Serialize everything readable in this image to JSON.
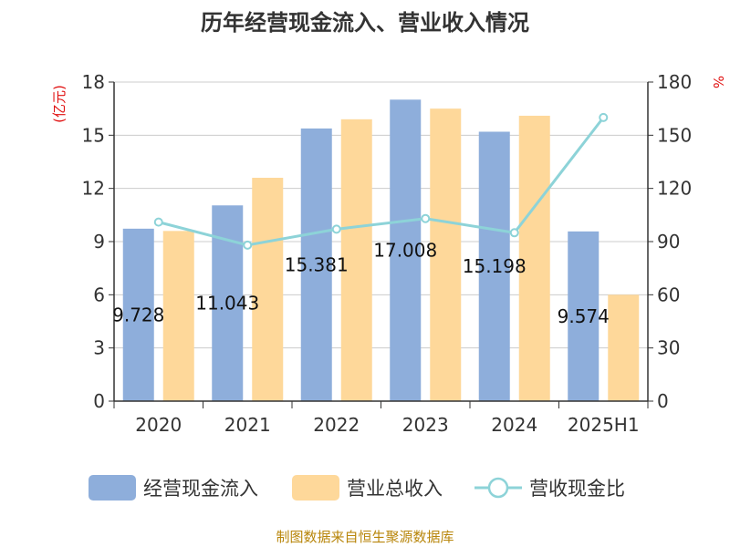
{
  "chart_data": {
    "type": "bar",
    "title": "历年经营现金流入、营业收入情况",
    "categories": [
      "2020",
      "2021",
      "2022",
      "2023",
      "2024",
      "2025H1"
    ],
    "left_axis": {
      "unit": "(亿元)",
      "ylim": [
        0,
        18
      ],
      "ticks": [
        "0",
        "3",
        "6",
        "9",
        "12",
        "15",
        "18"
      ]
    },
    "right_axis": {
      "unit": "%",
      "ylim": [
        0,
        180
      ],
      "ticks": [
        "0",
        "30",
        "60",
        "90",
        "120",
        "150",
        "180"
      ]
    },
    "series": [
      {
        "name": "经营现金流入",
        "type": "bar",
        "axis": "left",
        "color": "#8eaedb",
        "values": [
          9.728,
          11.043,
          15.381,
          17.008,
          15.198,
          9.574
        ],
        "labels": [
          "9.728",
          "11.043",
          "15.381",
          "17.008",
          "15.198",
          "9.574"
        ]
      },
      {
        "name": "营业总收入",
        "type": "bar",
        "axis": "left",
        "color": "#fed89a",
        "values": [
          9.6,
          12.6,
          15.9,
          16.5,
          16.1,
          6.0
        ]
      },
      {
        "name": "营收现金比",
        "type": "line",
        "axis": "right",
        "color": "#8dd3d8",
        "values": [
          101,
          88,
          97,
          103,
          95,
          160
        ]
      }
    ],
    "grid": true,
    "legend_position": "bottom"
  },
  "footer": {
    "source": "制图数据来自恒生聚源数据库"
  }
}
